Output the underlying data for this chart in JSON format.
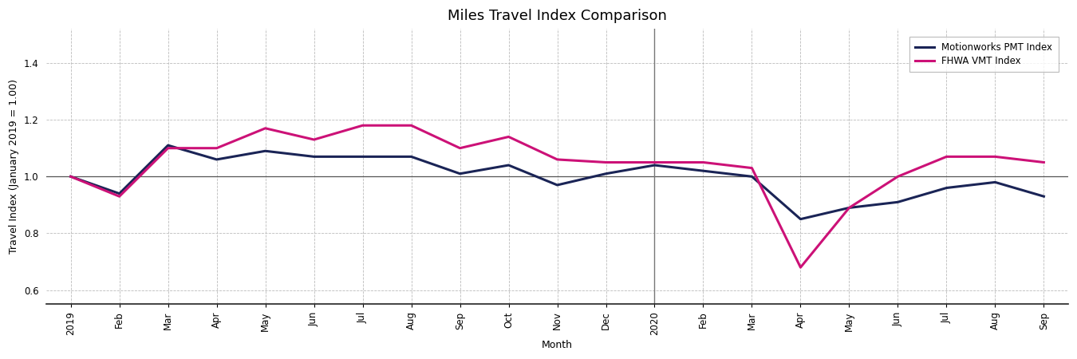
{
  "title": "Miles Travel Index Comparison",
  "xlabel": "Month",
  "ylabel": "Travel Index (January 2019 = 1.00)",
  "ylim": [
    0.55,
    1.52
  ],
  "yticks": [
    0.6,
    0.8,
    1.0,
    1.2,
    1.4
  ],
  "x_labels": [
    "2019",
    "Feb",
    "Mar",
    "Apr",
    "May",
    "Jun",
    "Jul",
    "Aug",
    "Sep",
    "Oct",
    "Nov",
    "Dec",
    "2020",
    "Feb",
    "Mar",
    "Apr",
    "May",
    "Jun",
    "Jul",
    "Aug",
    "Sep"
  ],
  "vline_x": 12,
  "pmt_color": "#1a2456",
  "fhwa_color": "#cc1177",
  "pmt_values": [
    1.0,
    0.94,
    1.11,
    1.06,
    1.09,
    1.07,
    1.07,
    1.07,
    1.01,
    1.04,
    0.97,
    1.01,
    1.04,
    1.02,
    1.0,
    0.85,
    0.89,
    0.91,
    0.96,
    0.98,
    0.93
  ],
  "fhwa_values": [
    1.0,
    0.93,
    1.1,
    1.1,
    1.17,
    1.13,
    1.18,
    1.18,
    1.1,
    1.14,
    1.06,
    1.05,
    1.05,
    1.05,
    1.03,
    0.68,
    0.89,
    1.0,
    1.07,
    1.07,
    1.05
  ],
  "legend_labels": [
    "Motionworks PMT Index",
    "FHWA VMT Index"
  ],
  "background_color": "#ffffff",
  "grid_color": "#bbbbbb",
  "hline_y": 1.0,
  "hline_color": "#555555",
  "title_fontsize": 13,
  "label_fontsize": 9,
  "tick_fontsize": 8.5,
  "line_width": 2.2,
  "figsize": [
    13.5,
    4.5
  ],
  "dpi": 100
}
